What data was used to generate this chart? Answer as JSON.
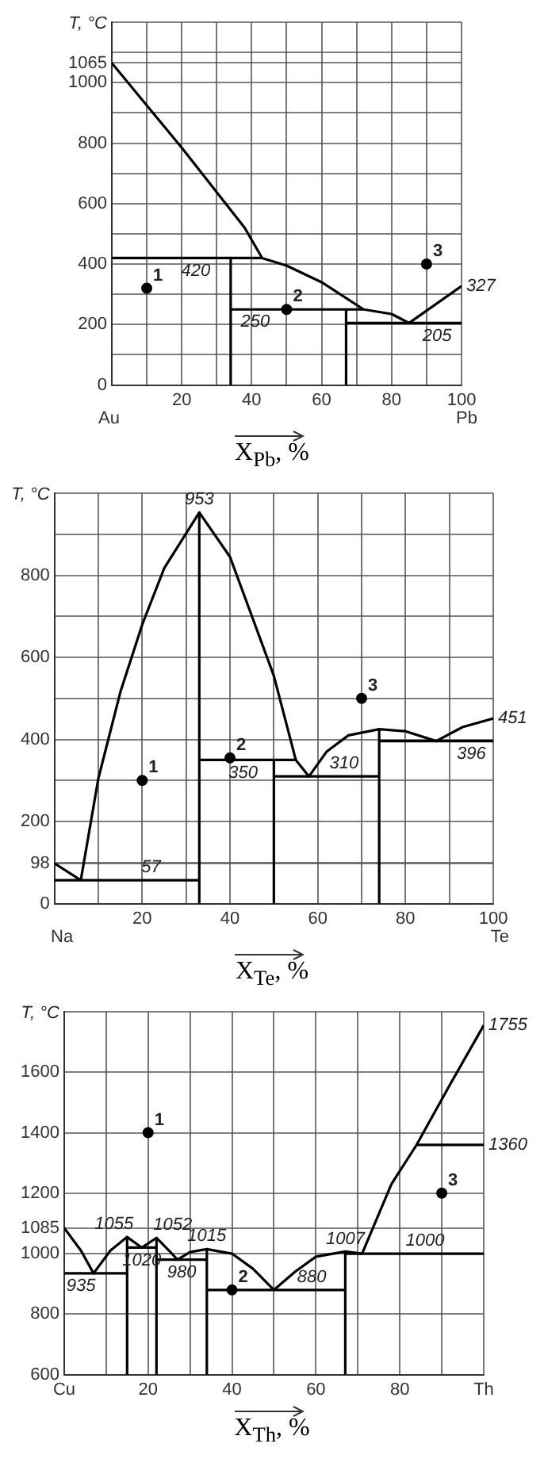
{
  "chart_data": [
    {
      "type": "line",
      "xlabel": "X$_{Pb}$, %",
      "ylabel": "T, °C",
      "xlim": [
        0,
        100
      ],
      "ylim": [
        0,
        1200
      ],
      "grid": true,
      "legend": false,
      "line_style": "solid",
      "xticks": [
        {
          "value": 0,
          "label": null
        },
        {
          "value": 10,
          "label": null
        },
        20,
        {
          "value": 30,
          "label": null
        },
        40,
        {
          "value": 50,
          "label": null
        },
        60,
        {
          "value": 70,
          "label": null
        },
        80,
        {
          "value": 90,
          "label": null
        },
        100
      ],
      "yticks": [
        0,
        {
          "value": 100,
          "label": null
        },
        200,
        {
          "value": 300,
          "label": null
        },
        400,
        {
          "value": 500,
          "label": null
        },
        600,
        {
          "value": 700,
          "label": null
        },
        800,
        {
          "value": 900,
          "label": null
        },
        1000,
        1065,
        {
          "value": 1100,
          "label": null
        },
        {
          "value": 1200,
          "label": null
        }
      ],
      "series": [
        {
          "color": "#000000",
          "x": [
            0,
            20,
            38,
            43,
            50,
            60,
            72,
            80,
            85,
            100
          ],
          "values": [
            1065,
            785,
            520,
            420,
            395,
            340,
            250,
            235,
            205,
            327
          ]
        },
        {
          "color": "#000000",
          "x": [
            0,
            43
          ],
          "values": [
            420,
            420
          ]
        },
        {
          "color": "#000000",
          "x": [
            34,
            34
          ],
          "values": [
            420,
            0
          ]
        },
        {
          "color": "#000000",
          "x": [
            34,
            72
          ],
          "values": [
            250,
            250
          ]
        },
        {
          "color": "#000000",
          "x": [
            67,
            67
          ],
          "values": [
            250,
            0
          ]
        },
        {
          "color": "#000000",
          "x": [
            67,
            100
          ],
          "values": [
            205,
            205
          ]
        },
        {
          "type": "scatter",
          "name": "1",
          "color": "#000000",
          "x": [
            10
          ],
          "values": [
            320
          ]
        },
        {
          "type": "scatter",
          "name": "2",
          "color": "#000000",
          "x": [
            50
          ],
          "values": [
            250
          ]
        },
        {
          "type": "scatter",
          "name": "3",
          "color": "#000000",
          "x": [
            90
          ],
          "values": [
            400
          ]
        }
      ],
      "annotations": [
        {
          "text": "420",
          "x": 24,
          "y": 420
        },
        {
          "text": "250",
          "x": 41,
          "y": 250
        },
        {
          "text": "205",
          "x": 93,
          "y": 205
        },
        {
          "text": "327",
          "x": 100,
          "y": 327
        },
        "Au",
        "Pb"
      ]
    },
    {
      "type": "line",
      "xlabel": "X$_{Te}$, %",
      "ylabel": "T, °C",
      "xlim": [
        0,
        100
      ],
      "ylim": [
        0,
        1000
      ],
      "grid": true,
      "legend": false,
      "line_style": "solid",
      "xticks": [
        {
          "value": 0,
          "label": null
        },
        {
          "value": 10,
          "label": null
        },
        20,
        {
          "value": 30,
          "label": null
        },
        40,
        {
          "value": 50,
          "label": null
        },
        60,
        {
          "value": 70,
          "label": null
        },
        80,
        {
          "value": 90,
          "label": null
        },
        100
      ],
      "yticks": [
        0,
        98,
        {
          "value": 100,
          "label": null
        },
        200,
        {
          "value": 300,
          "label": null
        },
        400,
        {
          "value": 500,
          "label": null
        },
        600,
        {
          "value": 700,
          "label": null
        },
        800,
        {
          "value": 900,
          "label": null
        },
        {
          "value": 1000,
          "label": null
        }
      ],
      "series": [
        {
          "color": "#000000",
          "x": [
            0,
            6
          ],
          "values": [
            98,
            57
          ]
        },
        {
          "color": "#000000",
          "x": [
            6,
            10,
            15,
            20,
            25,
            33,
            40,
            45,
            50,
            55,
            58,
            62,
            67,
            74,
            80,
            87,
            93,
            100
          ],
          "values": [
            57,
            305,
            515,
            680,
            817,
            953,
            845,
            700,
            555,
            350,
            310,
            370,
            410,
            425,
            420,
            396,
            430,
            451
          ]
        },
        {
          "color": "#000000",
          "x": [
            0,
            33
          ],
          "values": [
            57,
            57
          ]
        },
        {
          "color": "#000000",
          "x": [
            33,
            33
          ],
          "values": [
            953,
            0
          ]
        },
        {
          "color": "#000000",
          "x": [
            33,
            55
          ],
          "values": [
            350,
            350
          ]
        },
        {
          "color": "#000000",
          "x": [
            50,
            50
          ],
          "values": [
            350,
            0
          ]
        },
        {
          "color": "#000000",
          "x": [
            50,
            74
          ],
          "values": [
            310,
            310
          ]
        },
        {
          "color": "#000000",
          "x": [
            74,
            74
          ],
          "values": [
            425,
            0
          ]
        },
        {
          "color": "#000000",
          "x": [
            74,
            100
          ],
          "values": [
            396,
            396
          ]
        },
        {
          "type": "scatter",
          "name": "1",
          "color": "#000000",
          "x": [
            20
          ],
          "values": [
            300
          ]
        },
        {
          "type": "scatter",
          "name": "2",
          "color": "#000000",
          "x": [
            40
          ],
          "values": [
            355
          ]
        },
        {
          "type": "scatter",
          "name": "3",
          "color": "#000000",
          "x": [
            70
          ],
          "values": [
            500
          ]
        }
      ],
      "annotations": [
        {
          "text": "953",
          "x": 33,
          "y": 953
        },
        {
          "text": "57",
          "x": 22,
          "y": 57
        },
        {
          "text": "350",
          "x": 43,
          "y": 350
        },
        {
          "text": "310",
          "x": 66,
          "y": 310
        },
        {
          "text": "396",
          "x": 95,
          "y": 396
        },
        {
          "text": "451",
          "x": 100,
          "y": 451
        },
        "Na",
        "Te"
      ]
    },
    {
      "type": "line",
      "xlabel": "X$_{Th}$, %",
      "ylabel": "T, °C",
      "xlim": [
        0,
        100
      ],
      "ylim": [
        600,
        1800
      ],
      "grid": true,
      "legend": false,
      "line_style": "solid",
      "xticks": [
        {
          "value": 0,
          "label": "Cu"
        },
        {
          "value": 10,
          "label": null
        },
        20,
        {
          "value": 30,
          "label": null
        },
        40,
        {
          "value": 50,
          "label": null
        },
        60,
        {
          "value": 70,
          "label": null
        },
        80,
        {
          "value": 90,
          "label": null
        },
        {
          "value": 100,
          "label": "Th"
        }
      ],
      "yticks": [
        600,
        800,
        1000,
        1085,
        1200,
        1400,
        1600,
        {
          "value": 1800,
          "label": null
        }
      ],
      "series": [
        {
          "color": "#000000",
          "x": [
            0,
            4,
            7,
            11,
            15,
            18.5,
            22,
            25,
            27,
            30,
            34,
            40,
            45,
            50,
            55,
            60,
            67,
            71,
            78,
            84,
            92,
            100
          ],
          "values": [
            1085,
            1010,
            935,
            1010,
            1055,
            1020,
            1052,
            1010,
            980,
            1005,
            1015,
            1000,
            950,
            880,
            940,
            990,
            1007,
            1000,
            1230,
            1360,
            1560,
            1755
          ]
        },
        {
          "color": "#000000",
          "x": [
            0,
            15
          ],
          "values": [
            935,
            935
          ]
        },
        {
          "color": "#000000",
          "x": [
            15,
            15
          ],
          "values": [
            1055,
            600
          ]
        },
        {
          "color": "#000000",
          "x": [
            15,
            22
          ],
          "values": [
            1020,
            1020
          ]
        },
        {
          "color": "#000000",
          "x": [
            22,
            22
          ],
          "values": [
            1052,
            600
          ]
        },
        {
          "color": "#000000",
          "x": [
            22,
            34
          ],
          "values": [
            980,
            980
          ]
        },
        {
          "color": "#000000",
          "x": [
            34,
            34
          ],
          "values": [
            1015,
            600
          ]
        },
        {
          "color": "#000000",
          "x": [
            34,
            67
          ],
          "values": [
            880,
            880
          ]
        },
        {
          "color": "#000000",
          "x": [
            67,
            67
          ],
          "values": [
            1007,
            600
          ]
        },
        {
          "color": "#000000",
          "x": [
            67,
            100
          ],
          "values": [
            1000,
            1000
          ]
        },
        {
          "color": "#000000",
          "x": [
            84,
            100
          ],
          "values": [
            1360,
            1360
          ]
        },
        {
          "type": "scatter",
          "name": "1",
          "color": "#000000",
          "x": [
            20
          ],
          "values": [
            1400
          ]
        },
        {
          "type": "scatter",
          "name": "2",
          "color": "#000000",
          "x": [
            40
          ],
          "values": [
            880
          ]
        },
        {
          "type": "scatter",
          "name": "3",
          "color": "#000000",
          "x": [
            90
          ],
          "values": [
            1200
          ]
        }
      ],
      "annotations": [
        {
          "text": "935",
          "x": 4,
          "y": 935
        },
        {
          "text": "1055",
          "x": 15,
          "y": 1055
        },
        {
          "text": "1052",
          "x": 22,
          "y": 1052
        },
        {
          "text": "1020",
          "x": 18.5,
          "y": 1020
        },
        {
          "text": "1015",
          "x": 34,
          "y": 1015
        },
        {
          "text": "980",
          "x": 28,
          "y": 980
        },
        {
          "text": "1007",
          "x": 67,
          "y": 1007
        },
        {
          "text": "880",
          "x": 59,
          "y": 880
        },
        {
          "text": "1000",
          "x": 86,
          "y": 1000
        },
        {
          "text": "1755",
          "x": 100,
          "y": 1755
        },
        {
          "text": "1360",
          "x": 100,
          "y": 1360
        }
      ]
    }
  ]
}
